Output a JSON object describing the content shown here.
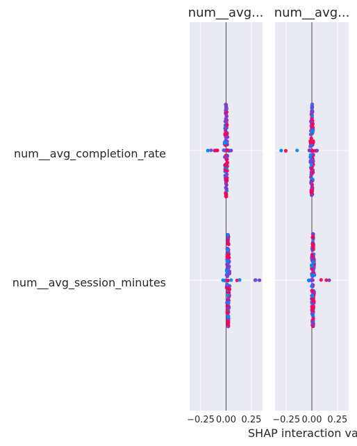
{
  "chart_data": {
    "type": "scatter",
    "subtype": "shap-interaction-beeswarm",
    "xlabel": "SHAP interaction va",
    "features": [
      "num__avg_completion_rate",
      "num__avg_session_minutes"
    ],
    "panel_titles": [
      "num__avg...",
      "num__avg..."
    ],
    "xlim": [
      -0.36,
      0.36
    ],
    "x_ticks": [
      -0.25,
      0.0,
      0.25
    ],
    "x_tick_labels": [
      "−0.25",
      "0.00",
      "0.25"
    ],
    "grid": true,
    "colors": {
      "low": "#008bfb",
      "mid": "#7b3fd3",
      "high": "#ff0052",
      "background": "#eaeaf2"
    },
    "panels": [
      {
        "title": "num__avg...",
        "rows": [
          {
            "feature": "num__avg_completion_rate",
            "y_spread": [
              -1,
              1
            ],
            "x_min": -0.18,
            "x_max": 0.05,
            "median": 0.0
          },
          {
            "feature": "num__avg_session_minutes",
            "y_spread": [
              -1,
              1
            ],
            "x_min": -0.03,
            "x_max": 0.33,
            "median": 0.02
          }
        ]
      },
      {
        "title": "num__avg...",
        "rows": [
          {
            "feature": "num__avg_completion_rate",
            "y_spread": [
              -1,
              1
            ],
            "x_min": -0.3,
            "x_max": 0.05,
            "median": 0.0
          },
          {
            "feature": "num__avg_session_minutes",
            "y_spread": [
              -1,
              1
            ],
            "x_min": -0.03,
            "x_max": 0.17,
            "median": 0.01
          }
        ]
      }
    ]
  }
}
